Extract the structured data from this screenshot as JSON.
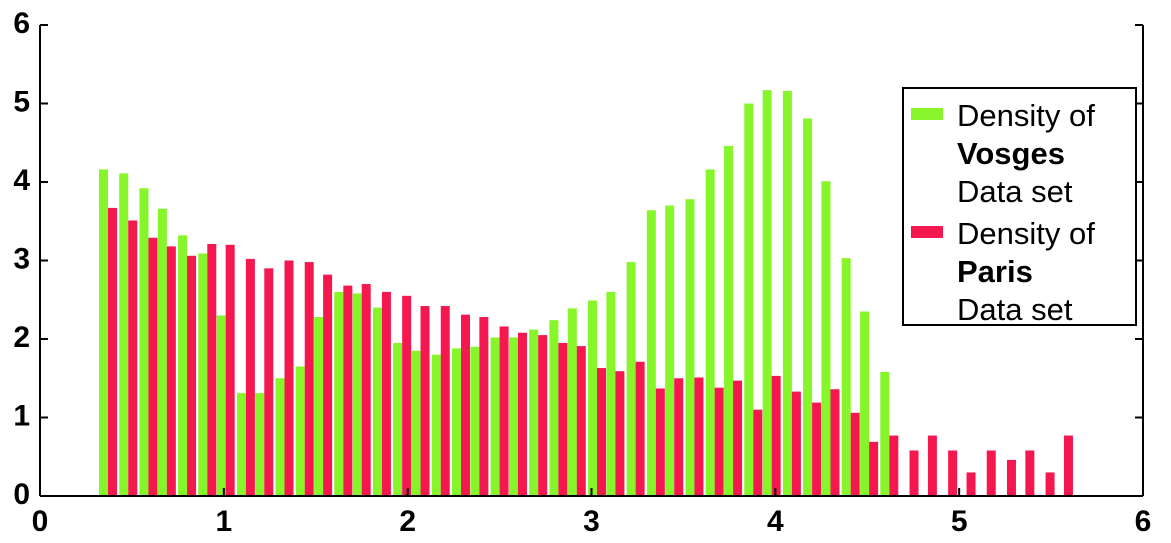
{
  "chart_data": {
    "type": "bar",
    "x": [
      0.37,
      0.48,
      0.59,
      0.69,
      0.8,
      0.91,
      1.01,
      1.12,
      1.22,
      1.33,
      1.44,
      1.54,
      1.65,
      1.75,
      1.86,
      1.97,
      2.07,
      2.18,
      2.29,
      2.39,
      2.5,
      2.6,
      2.71,
      2.82,
      2.92,
      3.03,
      3.13,
      3.24,
      3.35,
      3.45,
      3.56,
      3.67,
      3.77,
      3.88,
      3.98,
      4.09,
      4.2,
      4.3,
      4.41,
      4.51,
      4.62,
      4.73,
      4.83,
      4.94,
      5.04,
      5.15,
      5.26,
      5.36,
      5.47,
      5.57
    ],
    "series": [
      {
        "name": "Density of Vosges Data set",
        "color": "#86f52a",
        "values": [
          4.16,
          4.11,
          3.92,
          3.66,
          3.32,
          3.09,
          2.3,
          1.31,
          1.31,
          1.5,
          1.65,
          2.28,
          2.6,
          2.58,
          2.4,
          1.95,
          1.85,
          1.8,
          1.88,
          1.9,
          2.02,
          2.02,
          2.12,
          2.24,
          2.39,
          2.49,
          2.6,
          2.98,
          3.64,
          3.7,
          3.78,
          4.16,
          4.46,
          5.0,
          5.17,
          5.16,
          4.81,
          4.01,
          3.03,
          2.35,
          1.58,
          null,
          null,
          null,
          null,
          null,
          null,
          null,
          null,
          null
        ]
      },
      {
        "name": "Density of Paris Data set",
        "color": "#f5184f",
        "values": [
          3.67,
          3.51,
          3.29,
          3.18,
          3.06,
          3.21,
          3.2,
          3.02,
          2.9,
          3.0,
          2.98,
          2.82,
          2.68,
          2.7,
          2.6,
          2.55,
          2.42,
          2.42,
          2.31,
          2.28,
          2.16,
          2.08,
          2.05,
          1.95,
          1.91,
          1.63,
          1.59,
          1.71,
          1.37,
          1.5,
          1.51,
          1.38,
          1.47,
          1.1,
          1.53,
          1.33,
          1.19,
          1.36,
          1.06,
          0.69,
          0.77,
          0.58,
          0.77,
          0.58,
          0.3,
          0.58,
          0.46,
          0.58,
          0.3,
          0.77
        ]
      }
    ],
    "xlim": [
      0,
      6
    ],
    "xticks": [
      0,
      1,
      2,
      3,
      4,
      5,
      6
    ],
    "ylim": [
      0,
      6
    ],
    "yticks": [
      0,
      1,
      2,
      3,
      4,
      5,
      6
    ],
    "legend": "upper right"
  }
}
